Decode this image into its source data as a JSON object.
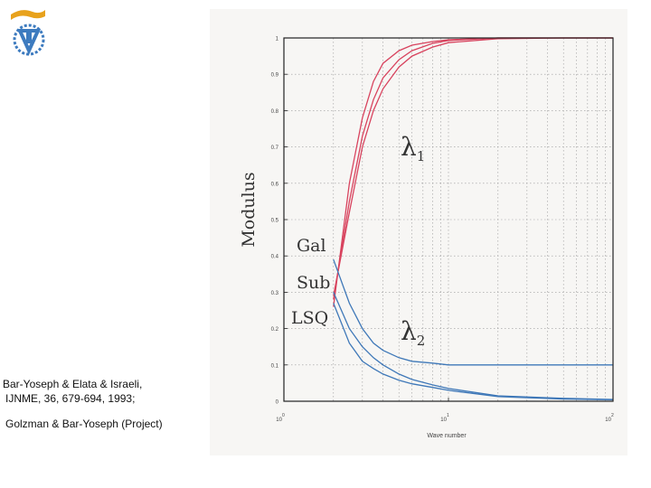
{
  "references": [
    "Bar-Yoseph  & Elata & Israeli,",
    "IJNME, 36, 679-694, 1993;",
    "Golzman & Bar-Yoseph  (Project)"
  ],
  "logo_icon": "university-emblem-icon",
  "chart_data": {
    "type": "line",
    "xlabel": "Wave number",
    "ylabel": "Modulus",
    "xscale": "log",
    "xlim": [
      1,
      100
    ],
    "ylim": [
      0,
      1
    ],
    "x_ticks": [
      {
        "base": "10",
        "exp": "0"
      },
      {
        "base": "10",
        "exp": "1"
      },
      {
        "base": "10",
        "exp": "2"
      }
    ],
    "y_ticks": [
      "0",
      "0.1",
      "0.2",
      "0.3",
      "0.4",
      "0.5",
      "0.6",
      "0.7",
      "0.8",
      "0.9",
      "1"
    ],
    "grid": true,
    "annotations": {
      "lambda1": {
        "symbol": "λ",
        "sub": "1"
      },
      "lambda2": {
        "symbol": "λ",
        "sub": "2"
      },
      "methods": [
        "Gal",
        "Sub",
        "LSQ"
      ]
    },
    "colors": {
      "lambda1": "#d8435e",
      "lambda2": "#3f78b8",
      "frame": "#222222",
      "grid": "#9a9a9a"
    },
    "series": [
      {
        "group": "lambda1",
        "x": [
          2,
          2.5,
          3,
          3.5,
          4,
          5,
          6,
          8,
          10,
          20,
          50,
          100
        ],
        "y": [
          0.26,
          0.6,
          0.78,
          0.88,
          0.93,
          0.965,
          0.98,
          0.99,
          0.995,
          1.0,
          1.0,
          1.0
        ]
      },
      {
        "group": "lambda1",
        "x": [
          2,
          2.5,
          3,
          3.5,
          4,
          5,
          6,
          8,
          10,
          20,
          50,
          100
        ],
        "y": [
          0.28,
          0.55,
          0.73,
          0.83,
          0.89,
          0.94,
          0.965,
          0.985,
          0.993,
          1.0,
          1.0,
          1.0
        ]
      },
      {
        "group": "lambda1",
        "x": [
          2,
          2.5,
          3,
          3.5,
          4,
          5,
          6,
          8,
          10,
          20,
          50,
          100
        ],
        "y": [
          0.29,
          0.52,
          0.7,
          0.8,
          0.86,
          0.92,
          0.95,
          0.975,
          0.987,
          0.998,
          1.0,
          1.0
        ]
      },
      {
        "group": "lambda2",
        "x": [
          2,
          2.5,
          3,
          3.5,
          4,
          5,
          6,
          8,
          10,
          20,
          50,
          100
        ],
        "y": [
          0.39,
          0.27,
          0.2,
          0.16,
          0.14,
          0.12,
          0.11,
          0.105,
          0.1,
          0.1,
          0.1,
          0.1
        ]
      },
      {
        "group": "lambda2",
        "x": [
          2,
          2.5,
          3,
          3.5,
          4,
          5,
          6,
          8,
          10,
          20,
          50,
          100
        ],
        "y": [
          0.3,
          0.2,
          0.15,
          0.12,
          0.1,
          0.075,
          0.06,
          0.045,
          0.035,
          0.015,
          0.008,
          0.005
        ]
      },
      {
        "group": "lambda2",
        "x": [
          2,
          2.5,
          3,
          3.5,
          4,
          5,
          6,
          8,
          10,
          20,
          50,
          100
        ],
        "y": [
          0.27,
          0.16,
          0.11,
          0.09,
          0.075,
          0.058,
          0.048,
          0.038,
          0.03,
          0.013,
          0.006,
          0.004
        ]
      }
    ]
  }
}
